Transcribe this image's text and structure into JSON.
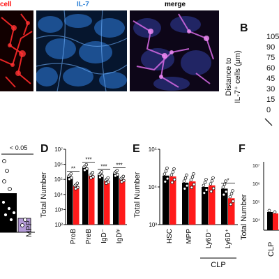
{
  "micrographs": {
    "left_title": "cell",
    "mid_title": "IL-7",
    "right_title": "merge",
    "colors": {
      "red": "#ff1010",
      "blue": "#2a7fd6",
      "merge": "#c95cd8"
    }
  },
  "panel_b": {
    "letter": "B",
    "ylabel_line1": "Distance to",
    "ylabel_line2": "IL-7⁺ cells (μm)",
    "ticks": [
      "105",
      "90",
      "75",
      "60",
      "45",
      "30",
      "15",
      "0"
    ]
  },
  "panel_c_partial": {
    "sig_label": "< 0.05",
    "category_fragment": "MPP",
    "colors": {
      "bar": "#000000",
      "bar2": "#b39ad6"
    }
  },
  "panel_d": {
    "letter": "D",
    "ylabel": "Total Number",
    "chart_data": {
      "type": "bar",
      "log_scale": true,
      "ylim": [
        100,
        10000000
      ],
      "yticks": [
        "10²",
        "10³",
        "10⁴",
        "10⁵",
        "10⁶",
        "10⁷"
      ],
      "categories": [
        "ProB",
        "PreB",
        "IgD⁻",
        "IgDʰⁱ"
      ],
      "series": [
        {
          "color": "#000000",
          "values": [
            150000,
            600000,
            200000,
            250000
          ]
        },
        {
          "color": "#ff1a1a",
          "values": [
            35000,
            180000,
            80000,
            100000
          ]
        }
      ],
      "significance": [
        "**",
        "***",
        "***",
        "***"
      ]
    }
  },
  "panel_e": {
    "letter": "E",
    "ylabel": "Total Number",
    "chart_data": {
      "type": "bar",
      "log_scale": true,
      "ylim": [
        1000,
        100000
      ],
      "yticks": [
        "10³",
        "10⁴",
        "10⁵"
      ],
      "categories": [
        "HSC",
        "MPP",
        "Ly6D⁻",
        "Ly6D⁺"
      ],
      "group_label": "CLP",
      "series": [
        {
          "color": "#000000",
          "values": [
            20000,
            13000,
            10000,
            9000
          ]
        },
        {
          "color": "#ff1a1a",
          "values": [
            19000,
            14000,
            11000,
            5000
          ]
        }
      ],
      "significance": [
        "",
        "",
        "",
        "*"
      ]
    }
  },
  "panel_f": {
    "letter": "F",
    "ylabel": "Total Number",
    "yticks": [
      "10⁷",
      "10⁶",
      "10⁵",
      "10⁴"
    ],
    "category_fragment": "CLP"
  }
}
